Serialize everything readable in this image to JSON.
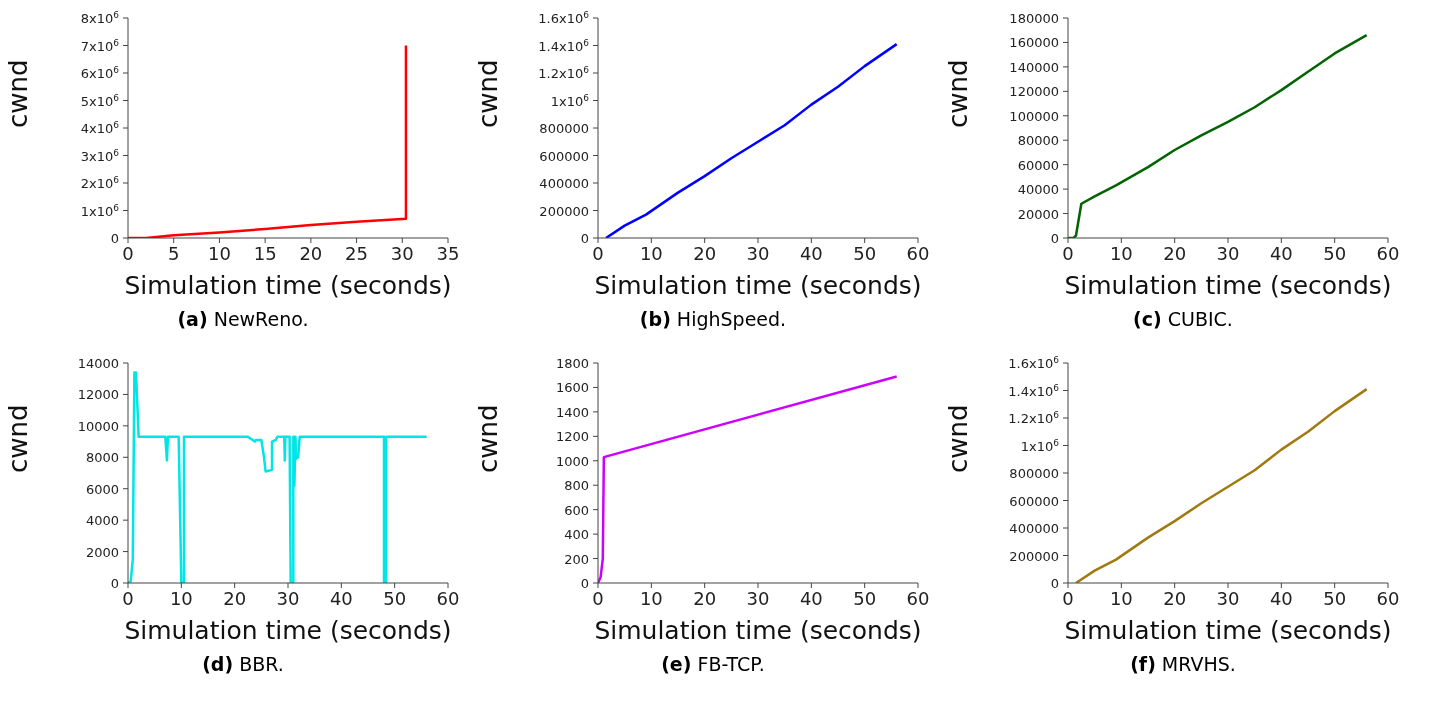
{
  "chart_data": [
    {
      "type": "line",
      "title": "(a) NewReno.",
      "xlabel": "Simulation time (seconds)",
      "ylabel": "cwnd",
      "marker": "none",
      "xlim": [
        0,
        35
      ],
      "xticks": [
        0,
        5,
        10,
        15,
        20,
        25,
        30,
        35
      ],
      "ylim": [
        0,
        8000000
      ],
      "yticks": [
        0,
        {
          "value": 1000000,
          "label": "1x10$^{6}$"
        },
        {
          "value": 2000000,
          "label": "2x10$^{6}$"
        },
        {
          "value": 3000000,
          "label": "3x10$^{6}$"
        },
        {
          "value": 4000000,
          "label": "4x10$^{6}$"
        },
        {
          "value": 5000000,
          "label": "5x10$^{6}$"
        },
        {
          "value": 6000000,
          "label": "6x10$^{6}$"
        },
        {
          "value": 7000000,
          "label": "7x10$^{6}$"
        },
        {
          "value": 8000000,
          "label": "8x10$^{6}$"
        }
      ],
      "series": [
        {
          "color": "#ff0000",
          "x": [
            0,
            2,
            5,
            10,
            15,
            20,
            25,
            30.4,
            30.4
          ],
          "values": [
            0,
            0,
            100000,
            200000,
            330000,
            470000,
            590000,
            700000,
            7000000
          ]
        }
      ]
    },
    {
      "type": "line",
      "title": "(b) HighSpeed.",
      "xlabel": "Simulation time (seconds)",
      "ylabel": "cwnd",
      "marker": "none",
      "xlim": [
        0,
        60
      ],
      "xticks": [
        0,
        10,
        20,
        30,
        40,
        50,
        60
      ],
      "ylim": [
        0,
        1600000
      ],
      "yticks": [
        0,
        200000,
        400000,
        600000,
        800000,
        {
          "value": 1000000,
          "label": "1x10$^{6}$"
        },
        {
          "value": 1200000,
          "label": "1.2x10$^{6}$"
        },
        {
          "value": 1400000,
          "label": "1.4x10$^{6}$"
        },
        {
          "value": 1600000,
          "label": "1.6x10$^{6}$"
        }
      ],
      "series": [
        {
          "color": "#0000ff",
          "x": [
            1.5,
            5,
            9,
            15,
            20,
            25,
            30,
            35,
            40,
            45,
            50,
            56
          ],
          "values": [
            0,
            90000,
            170000,
            330000,
            450000,
            580000,
            700000,
            820000,
            970000,
            1100000,
            1250000,
            1410000
          ]
        }
      ]
    },
    {
      "type": "line",
      "title": "(c) CUBIC.",
      "xlabel": "Simulation time (seconds)",
      "ylabel": "cwnd",
      "marker": "none",
      "xlim": [
        0,
        60
      ],
      "xticks": [
        0,
        10,
        20,
        30,
        40,
        50,
        60
      ],
      "ylim": [
        0,
        180000
      ],
      "yticks": [
        0,
        20000,
        40000,
        60000,
        80000,
        100000,
        120000,
        140000,
        160000,
        180000
      ],
      "series": [
        {
          "color": "#006400",
          "x": [
            0,
            1,
            1.5,
            2.5,
            5,
            9,
            15,
            20,
            25,
            30,
            35,
            40,
            45,
            50,
            56
          ],
          "values": [
            0,
            0,
            2000,
            28000,
            34000,
            43000,
            58000,
            72000,
            84000,
            95000,
            107000,
            121000,
            136000,
            151000,
            166000
          ]
        }
      ]
    },
    {
      "type": "line",
      "title": "(d) BBR.",
      "xlabel": "Simulation time (seconds)",
      "ylabel": "cwnd",
      "marker": "none",
      "xlim": [
        0,
        60
      ],
      "xticks": [
        0,
        10,
        20,
        30,
        40,
        50,
        60
      ],
      "ylim": [
        0,
        14000
      ],
      "yticks": [
        0,
        2000,
        4000,
        6000,
        8000,
        10000,
        12000,
        14000
      ],
      "series": [
        {
          "color": "#00e5e5",
          "x": [
            0,
            0.5,
            0.9,
            1.2,
            1.5,
            2,
            7,
            7.3,
            7.5,
            9.5,
            10,
            10.5,
            10.5,
            22.5,
            23.8,
            24,
            25,
            25.5,
            25.8,
            27,
            27,
            27.7,
            28,
            29.3,
            29.4,
            29.5,
            30.3,
            30.5,
            31,
            31,
            31.2,
            31.4,
            31.5,
            31.9,
            32.2,
            48,
            48,
            48.4,
            48.4,
            56
          ],
          "values": [
            0,
            100,
            1500,
            13400,
            13400,
            9300,
            9300,
            7800,
            9300,
            9300,
            0,
            0,
            9300,
            9300,
            9000,
            9100,
            9100,
            8000,
            7100,
            7200,
            9000,
            9100,
            9300,
            9300,
            7800,
            9300,
            9300,
            0,
            0,
            9300,
            6200,
            9300,
            7900,
            8000,
            9300,
            9300,
            0,
            0,
            9300,
            9300
          ]
        }
      ]
    },
    {
      "type": "line",
      "title": "(e) FB-TCP.",
      "xlabel": "Simulation time (seconds)",
      "ylabel": "cwnd",
      "marker": "none",
      "xlim": [
        0,
        60
      ],
      "xticks": [
        0,
        10,
        20,
        30,
        40,
        50,
        60
      ],
      "ylim": [
        0,
        1800
      ],
      "yticks": [
        0,
        200,
        400,
        600,
        800,
        1000,
        1200,
        1400,
        1600,
        1800
      ],
      "series": [
        {
          "color": "#cc00ff",
          "x": [
            0,
            0.5,
            0.9,
            1.1,
            56
          ],
          "values": [
            0,
            50,
            200,
            1030,
            1690
          ]
        }
      ]
    },
    {
      "type": "line",
      "title": "(f) MRVHS.",
      "xlabel": "Simulation time (seconds)",
      "ylabel": "cwnd",
      "marker": "none",
      "xlim": [
        0,
        60
      ],
      "xticks": [
        0,
        10,
        20,
        30,
        40,
        50,
        60
      ],
      "ylim": [
        0,
        1600000
      ],
      "yticks": [
        0,
        200000,
        400000,
        600000,
        800000,
        {
          "value": 1000000,
          "label": "1x10$^{6}$"
        },
        {
          "value": 1200000,
          "label": "1.2x10$^{6}$"
        },
        {
          "value": 1400000,
          "label": "1.4x10$^{6}$"
        },
        {
          "value": 1600000,
          "label": "1.6x10$^{6}$"
        }
      ],
      "series": [
        {
          "color": "#a07a10",
          "x": [
            1.5,
            5,
            9,
            15,
            20,
            25,
            30,
            35,
            40,
            45,
            50,
            56
          ],
          "values": [
            0,
            90000,
            170000,
            330000,
            450000,
            580000,
            700000,
            820000,
            970000,
            1100000,
            1250000,
            1410000
          ]
        }
      ]
    }
  ]
}
